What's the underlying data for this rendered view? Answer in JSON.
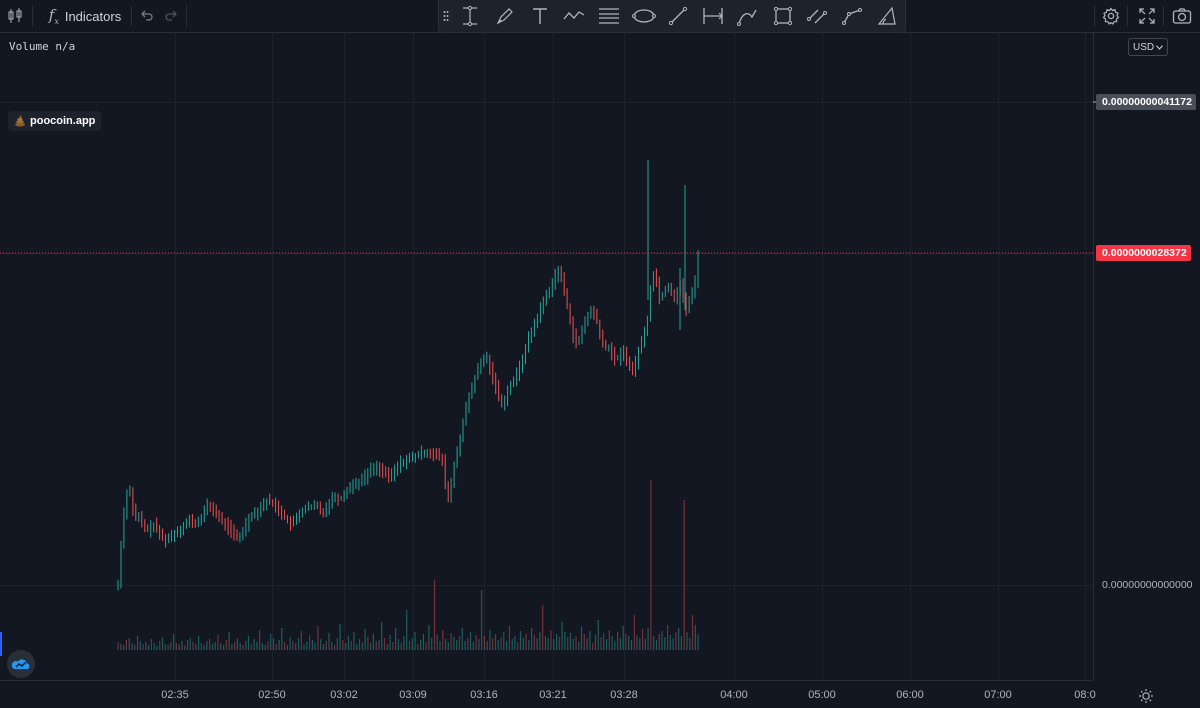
{
  "toolbar": {
    "indicators_label": "Indicators",
    "icons": [
      "candles-icon",
      "fx-icon",
      "undo-icon",
      "redo-icon",
      "settings-icon",
      "fullscreen-icon",
      "camera-icon"
    ]
  },
  "drawing_tools": [
    "grip-icon",
    "long-position-icon",
    "brush-icon",
    "text-icon",
    "pattern-icon",
    "fib-levels-icon",
    "ellipse-icon",
    "trend-line-icon",
    "date-range-icon",
    "curve-icon",
    "rectangle-icon",
    "parallel-channel-icon",
    "path-icon",
    "arc-icon"
  ],
  "legend": {
    "title": "Volume n/a"
  },
  "watermark": {
    "text": "poocoin.app"
  },
  "currency": {
    "label": "USD"
  },
  "colors": {
    "up": "#26a69a",
    "down": "#ef5350",
    "background": "#131722",
    "grid": "#1e222d",
    "last_price": "#f23645"
  },
  "chart_data": {
    "type": "candlestick",
    "title": "",
    "price_scale": {
      "high_label": "0.00000000041172",
      "last_label": "0.0000000028372",
      "zero_label": "0.00000000000000"
    },
    "time_labels": [
      "02:35",
      "02:50",
      "03:02",
      "03:09",
      "03:16",
      "03:21",
      "03:28",
      "04:00",
      "05:00",
      "06:00",
      "07:00",
      "08:0"
    ],
    "price_path": [
      [
        0,
        585
      ],
      [
        2,
        555
      ],
      [
        5,
        520
      ],
      [
        8,
        495
      ],
      [
        11,
        485
      ],
      [
        14,
        505
      ],
      [
        17,
        520
      ],
      [
        20,
        515
      ],
      [
        24,
        525
      ],
      [
        30,
        530
      ],
      [
        36,
        525
      ],
      [
        42,
        535
      ],
      [
        48,
        540
      ],
      [
        54,
        535
      ],
      [
        60,
        530
      ],
      [
        66,
        525
      ],
      [
        72,
        520
      ],
      [
        78,
        525
      ],
      [
        84,
        515
      ],
      [
        90,
        505
      ],
      [
        96,
        510
      ],
      [
        102,
        520
      ],
      [
        108,
        525
      ],
      [
        114,
        532
      ],
      [
        120,
        540
      ],
      [
        126,
        528
      ],
      [
        132,
        515
      ],
      [
        138,
        512
      ],
      [
        144,
        505
      ],
      [
        150,
        500
      ],
      [
        156,
        505
      ],
      [
        162,
        510
      ],
      [
        168,
        520
      ],
      [
        174,
        525
      ],
      [
        180,
        515
      ],
      [
        186,
        508
      ],
      [
        192,
        508
      ],
      [
        198,
        505
      ],
      [
        204,
        512
      ],
      [
        210,
        505
      ],
      [
        216,
        495
      ],
      [
        222,
        500
      ],
      [
        228,
        490
      ],
      [
        234,
        485
      ],
      [
        240,
        482
      ],
      [
        246,
        478
      ],
      [
        252,
        470
      ],
      [
        258,
        467
      ],
      [
        264,
        470
      ],
      [
        270,
        478
      ],
      [
        276,
        472
      ],
      [
        282,
        463
      ],
      [
        288,
        460
      ],
      [
        294,
        458
      ],
      [
        300,
        455
      ],
      [
        306,
        452
      ],
      [
        312,
        452
      ],
      [
        318,
        455
      ],
      [
        324,
        460
      ],
      [
        328,
        490
      ],
      [
        330,
        500
      ],
      [
        334,
        478
      ],
      [
        338,
        455
      ],
      [
        344,
        428
      ],
      [
        350,
        400
      ],
      [
        356,
        380
      ],
      [
        362,
        365
      ],
      [
        368,
        355
      ],
      [
        372,
        370
      ],
      [
        376,
        380
      ],
      [
        380,
        395
      ],
      [
        384,
        405
      ],
      [
        388,
        395
      ],
      [
        392,
        385
      ],
      [
        396,
        380
      ],
      [
        400,
        372
      ],
      [
        404,
        360
      ],
      [
        408,
        345
      ],
      [
        414,
        330
      ],
      [
        420,
        315
      ],
      [
        426,
        300
      ],
      [
        432,
        288
      ],
      [
        436,
        278
      ],
      [
        440,
        270
      ],
      [
        444,
        282
      ],
      [
        448,
        300
      ],
      [
        452,
        320
      ],
      [
        456,
        340
      ],
      [
        460,
        345
      ],
      [
        464,
        330
      ],
      [
        468,
        318
      ],
      [
        474,
        310
      ],
      [
        478,
        318
      ],
      [
        482,
        335
      ],
      [
        486,
        350
      ],
      [
        490,
        345
      ],
      [
        494,
        355
      ],
      [
        498,
        360
      ],
      [
        502,
        355
      ],
      [
        506,
        352
      ],
      [
        510,
        362
      ],
      [
        514,
        375
      ],
      [
        518,
        360
      ],
      [
        522,
        345
      ],
      [
        526,
        335
      ],
      [
        530,
        315
      ],
      [
        534,
        270
      ],
      [
        538,
        280
      ],
      [
        542,
        300
      ],
      [
        546,
        290
      ],
      [
        550,
        285
      ],
      [
        556,
        298
      ],
      [
        562,
        285
      ],
      [
        566,
        300
      ],
      [
        568,
        310
      ],
      [
        572,
        298
      ],
      [
        576,
        290
      ],
      [
        580,
        255
      ]
    ],
    "volume": [
      8,
      6,
      5,
      10,
      12,
      7,
      5,
      14,
      9,
      6,
      8,
      5,
      11,
      7,
      4,
      9,
      13,
      6,
      5,
      8,
      16,
      7,
      6,
      9,
      5,
      10,
      12,
      8,
      6,
      14,
      7,
      5,
      9,
      11,
      6,
      8,
      15,
      7,
      5,
      10,
      18,
      6,
      8,
      12,
      7,
      5,
      9,
      14,
      6,
      11,
      8,
      20,
      7,
      5,
      9,
      16,
      12,
      6,
      10,
      22,
      8,
      5,
      13,
      9,
      7,
      12,
      19,
      6,
      8,
      15,
      10,
      7,
      24,
      11,
      6,
      9,
      17,
      8,
      5,
      12,
      26,
      10,
      7,
      14,
      9,
      18,
      6,
      11,
      8,
      21,
      13,
      7,
      16,
      9,
      10,
      28,
      12,
      6,
      15,
      8,
      22,
      11,
      7,
      14,
      40,
      9,
      12,
      18,
      6,
      10,
      16,
      8,
      25,
      12,
      70,
      15,
      9,
      20,
      11,
      8,
      17,
      13,
      10,
      14,
      22,
      9,
      12,
      18,
      8,
      15,
      11,
      60,
      14,
      9,
      20,
      12,
      16,
      10,
      13,
      18,
      9,
      24,
      11,
      14,
      8,
      19,
      12,
      16,
      10,
      22,
      15,
      12,
      18,
      45,
      14,
      12,
      20,
      11,
      16,
      13,
      28,
      18,
      13,
      17,
      11,
      14,
      8,
      23,
      16,
      12,
      19,
      7,
      15,
      30,
      13,
      17,
      11,
      20,
      14,
      9,
      18,
      12,
      24,
      16,
      14,
      10,
      35,
      15,
      12,
      21,
      11,
      22,
      170,
      14,
      10,
      16,
      19,
      13,
      25,
      15,
      12,
      18,
      22,
      14,
      150,
      18,
      12,
      35,
      25,
      15
    ]
  }
}
